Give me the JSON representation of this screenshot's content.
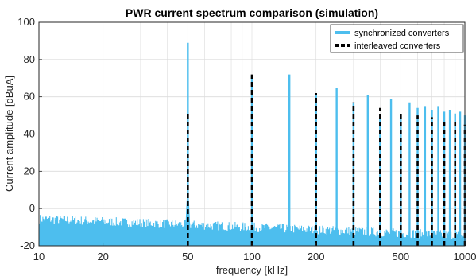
{
  "chart_data": {
    "type": "line",
    "title": "PWR current spectrum comparison (simulation)",
    "xlabel": "frequency [kHz]",
    "ylabel": "Current amplitude [dBuA]",
    "x_scale": "log",
    "xlim": [
      10,
      1000
    ],
    "ylim": [
      -20,
      100
    ],
    "x_ticks": [
      10,
      20,
      50,
      100,
      200,
      500,
      1000
    ],
    "x_tick_labels": [
      "10",
      "20",
      "50",
      "100",
      "200",
      "500",
      "1000"
    ],
    "y_ticks": [
      -20,
      0,
      20,
      40,
      60,
      80,
      100
    ],
    "y_tick_labels": [
      "-20",
      "0",
      "20",
      "40",
      "60",
      "80",
      "100"
    ],
    "grid": true,
    "legend_position": "top-right",
    "noise_floor": {
      "start_db": -8,
      "end_db": -17,
      "spread_db": 5
    },
    "series": [
      {
        "name": "synchronized converters",
        "color": "#4DBEEE",
        "style": "solid",
        "x": [
          50,
          100,
          150,
          200,
          250,
          300,
          350,
          400,
          450,
          500,
          550,
          600,
          650,
          700,
          750,
          800,
          850,
          900,
          950,
          1000
        ],
        "values": [
          89,
          71,
          72,
          62,
          65,
          57,
          61,
          48,
          59,
          50,
          57,
          54,
          55,
          53,
          55,
          52,
          53,
          51,
          52,
          50
        ]
      },
      {
        "name": "interleaved converters",
        "color": "#000000",
        "style": "dashed",
        "x": [
          50,
          100,
          200,
          300,
          400,
          500,
          600,
          700,
          800,
          900,
          1000
        ],
        "values": [
          51,
          72,
          62,
          57,
          54,
          52,
          50,
          49,
          48,
          47,
          45
        ]
      }
    ]
  }
}
